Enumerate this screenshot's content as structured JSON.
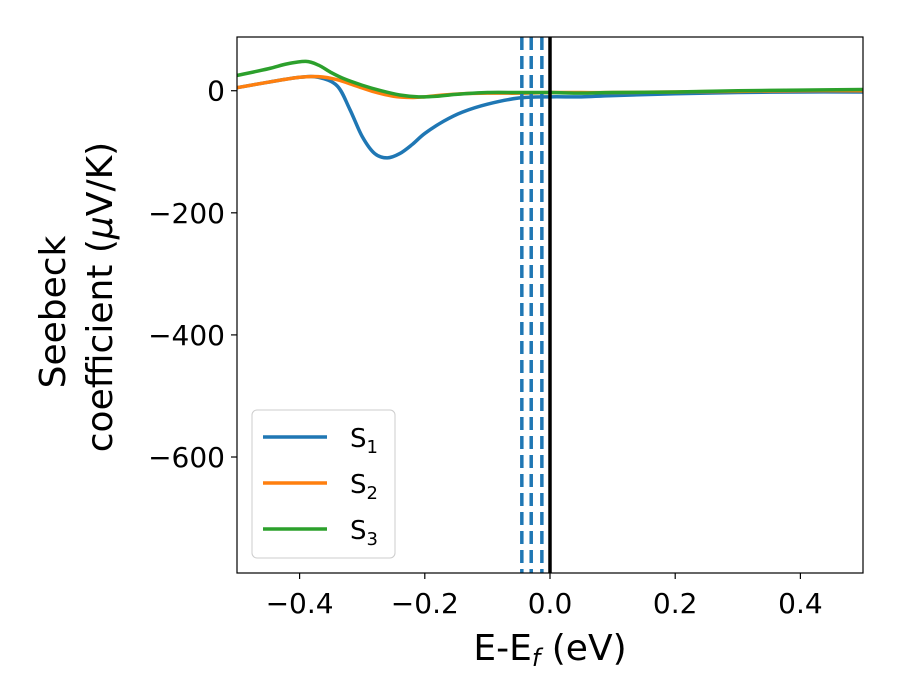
{
  "chart_data": {
    "type": "line",
    "title": "",
    "xlabel_main": "E-E",
    "xlabel_sub": "f",
    "xlabel_unit": " (eV)",
    "ylabel_line1": "Seebeck",
    "ylabel_line2_text": "coefficient  (",
    "ylabel_line2_mu": "μ",
    "ylabel_line2_unit": "V/K)",
    "xlim": [
      -0.5,
      0.5
    ],
    "ylim": [
      -790,
      88
    ],
    "xticks": [
      -0.4,
      -0.2,
      0.0,
      0.2,
      0.4
    ],
    "xtick_labels": [
      "−0.4",
      "−0.2",
      "0.0",
      "0.2",
      "0.4"
    ],
    "yticks": [
      0,
      -200,
      -400,
      -600
    ],
    "ytick_labels": [
      "0",
      "−200",
      "−400",
      "−600"
    ],
    "grid": false,
    "legend_position": "lower-left",
    "vertical_lines": [
      {
        "x": -0.045,
        "style": "dashed",
        "color": "#1f77b4"
      },
      {
        "x": -0.03,
        "style": "dashed",
        "color": "#1f77b4"
      },
      {
        "x": -0.013,
        "style": "dashed",
        "color": "#1f77b4"
      },
      {
        "x": 0.0,
        "style": "solid",
        "color": "#000000"
      }
    ],
    "series": [
      {
        "name_main": "S",
        "name_sub": "1",
        "color": "#1f77b4",
        "x": [
          -0.5,
          -0.45,
          -0.4,
          -0.37,
          -0.34,
          -0.32,
          -0.3,
          -0.28,
          -0.26,
          -0.24,
          -0.22,
          -0.2,
          -0.17,
          -0.14,
          -0.1,
          -0.05,
          0.0,
          0.05,
          0.1,
          0.2,
          0.3,
          0.4,
          0.5
        ],
        "y": [
          5,
          14,
          22,
          22,
          8,
          -30,
          -75,
          -103,
          -110,
          -103,
          -88,
          -70,
          -50,
          -35,
          -22,
          -12,
          -10,
          -10,
          -8,
          -5,
          -3,
          -2,
          -2
        ]
      },
      {
        "name_main": "S",
        "name_sub": "2",
        "color": "#ff7f0e",
        "x": [
          -0.5,
          -0.45,
          -0.4,
          -0.37,
          -0.34,
          -0.31,
          -0.28,
          -0.25,
          -0.22,
          -0.2,
          -0.17,
          -0.14,
          -0.1,
          -0.05,
          0.0,
          0.05,
          0.1,
          0.2,
          0.3,
          0.4,
          0.5
        ],
        "y": [
          5,
          14,
          22,
          23,
          18,
          8,
          -2,
          -9,
          -11,
          -10,
          -7,
          -5,
          -4,
          -4,
          -3,
          -3,
          -3,
          -2,
          -1,
          0,
          0
        ]
      },
      {
        "name_main": "S",
        "name_sub": "3",
        "color": "#2ca02c",
        "x": [
          -0.5,
          -0.45,
          -0.42,
          -0.39,
          -0.37,
          -0.35,
          -0.33,
          -0.3,
          -0.27,
          -0.24,
          -0.21,
          -0.18,
          -0.15,
          -0.1,
          -0.05,
          0.0,
          0.05,
          0.1,
          0.2,
          0.3,
          0.4,
          0.5
        ],
        "y": [
          25,
          36,
          44,
          48,
          42,
          30,
          20,
          9,
          0,
          -7,
          -10,
          -9,
          -6,
          -3,
          -3,
          -3,
          -4,
          -3,
          -2,
          0,
          1,
          2
        ]
      }
    ]
  }
}
